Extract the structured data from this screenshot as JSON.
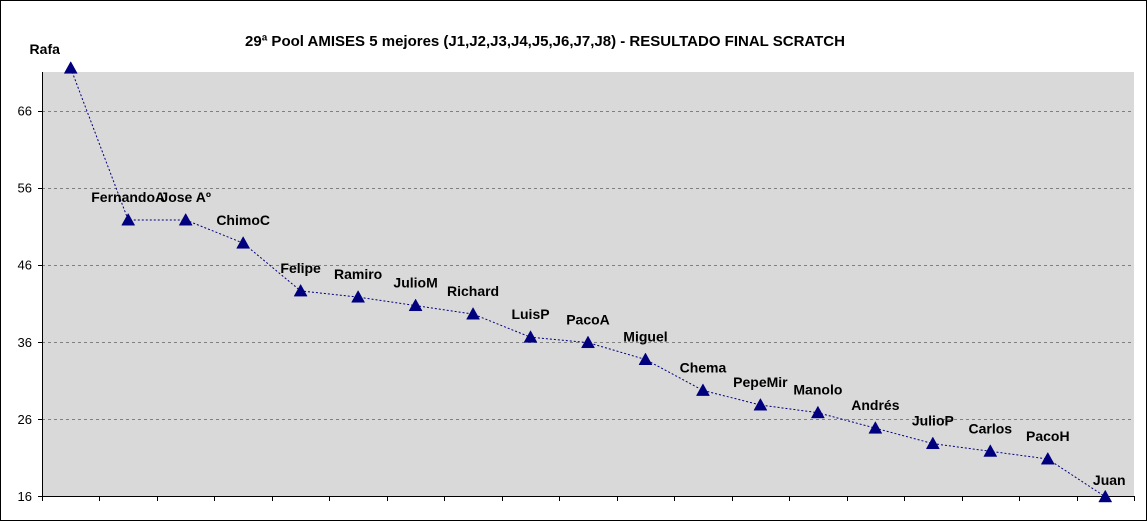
{
  "chart_data": {
    "type": "line",
    "title": "29ª Pool AMISES 5 mejores (J1,J2,J3,J4,J5,J6,J7,J8) - RESULTADO FINAL SCRATCH",
    "xlabel": "",
    "ylabel": "",
    "ylim": [
      16,
      71
    ],
    "yticks": [
      16,
      26,
      36,
      46,
      56,
      66
    ],
    "grid": true,
    "legend": "none",
    "categories": [
      "Rafa",
      "FernandoA",
      "Jose Aº",
      "ChimoC",
      "Felipe",
      "Ramiro",
      "JulioM",
      "Richard",
      "LuisP",
      "PacoA",
      "Miguel",
      "Chema",
      "PepeMir",
      "Manolo",
      "Andrés",
      "JulioP",
      "Carlos",
      "PacoH",
      "Juan"
    ],
    "series": [
      {
        "values": [
          71.5,
          51.8,
          51.8,
          48.8,
          42.6,
          41.8,
          40.7,
          39.6,
          36.6,
          35.9,
          33.7,
          29.7,
          27.8,
          26.8,
          24.8,
          22.8,
          21.8,
          20.8,
          15.9
        ]
      }
    ],
    "colors": {
      "plot_area": "#d9d9d9",
      "line": "#00007f",
      "marker": "#00007f",
      "gridline": "#7f7f7f",
      "frame": "#000000"
    }
  }
}
